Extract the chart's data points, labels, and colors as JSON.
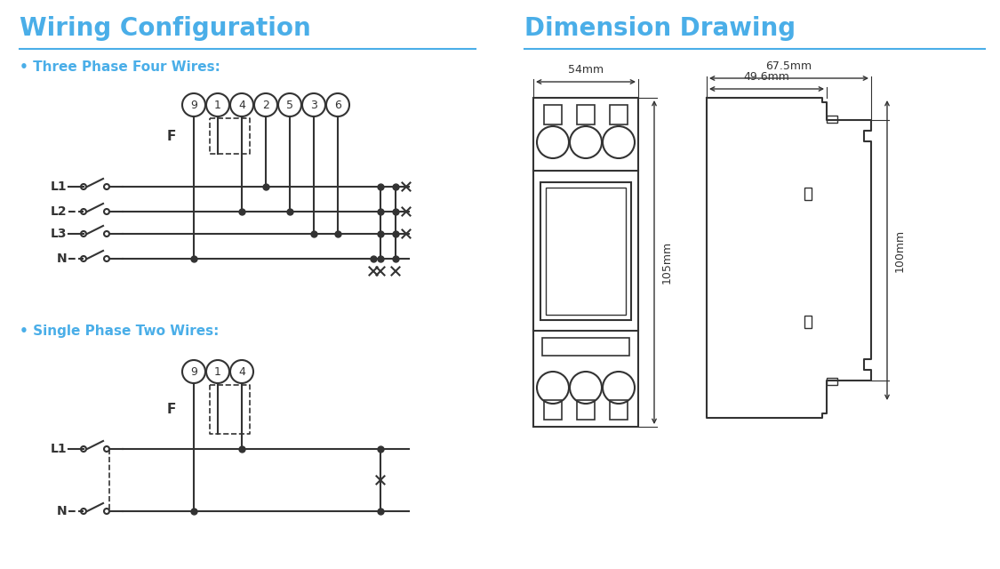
{
  "title_left": "Wiring Configuration",
  "title_right": "Dimension Drawing",
  "title_color": "#4aaee8",
  "title_fontsize": 20,
  "subtitle_color": "#4aaee8",
  "subtitle_fontsize": 11,
  "line_color": "#333333",
  "bg_color": "#ffffff",
  "three_phase_label": "• Three Phase Four Wires:",
  "single_phase_label": "• Single Phase Two Wires:",
  "dim_54mm": "54mm",
  "dim_67_5mm": "67.5mm",
  "dim_49_6mm": "49.6mm",
  "dim_105mm": "105mm",
  "dim_100mm": "100mm"
}
